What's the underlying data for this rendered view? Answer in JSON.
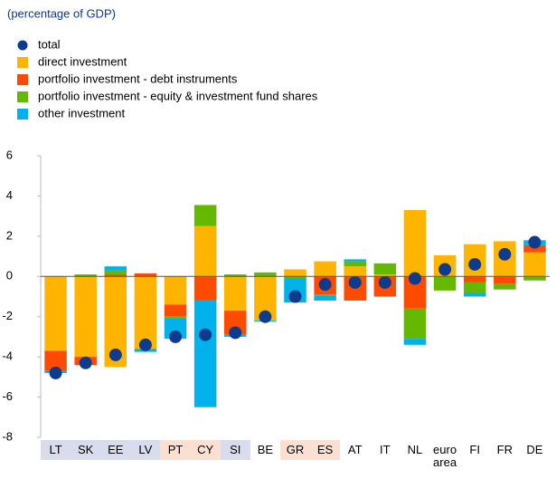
{
  "chart_data": {
    "type": "bar",
    "stacked": true,
    "subtitle": "(percentage of GDP)",
    "categories": [
      "LT",
      "SK",
      "EE",
      "LV",
      "PT",
      "CY",
      "SI",
      "BE",
      "GR",
      "ES",
      "AT",
      "IT",
      "NL",
      "euro area",
      "FI",
      "FR",
      "DE"
    ],
    "category_backgrounds": [
      "#d9dcec",
      "#d9dcec",
      "#d9dcec",
      "#d9dcec",
      "#fbdfd0",
      "#fbdfd0",
      "#d9dcec",
      null,
      "#fbdfd0",
      "#fbdfd0",
      null,
      null,
      null,
      null,
      null,
      null,
      null
    ],
    "series": [
      {
        "name": "total",
        "type": "scatter",
        "color": "#0d3b8e",
        "values": [
          -4.8,
          -4.3,
          -3.9,
          -3.4,
          -3.0,
          -2.9,
          -2.8,
          -2.0,
          -1.0,
          -0.4,
          -0.3,
          -0.3,
          -0.1,
          0.35,
          0.6,
          1.1,
          1.7
        ]
      },
      {
        "name": "direct investment",
        "color": "#ffb400",
        "values": [
          -3.7,
          -4.0,
          -4.5,
          -3.6,
          -1.4,
          2.5,
          -1.7,
          -2.2,
          0.35,
          0.75,
          0.5,
          0.1,
          3.3,
          1.05,
          1.6,
          1.75,
          1.2
        ]
      },
      {
        "name": "portfolio investment - debt instruments",
        "color": "#ff4b00",
        "values": [
          -1.0,
          -0.4,
          0.1,
          0.15,
          -0.6,
          -1.2,
          -1.2,
          0,
          0,
          -0.9,
          -1.2,
          -1.0,
          -1.6,
          0,
          -0.3,
          -0.35,
          0.35
        ]
      },
      {
        "name": "portfolio investment - equity & investment fund shares",
        "color": "#65b800",
        "values": [
          0,
          0.1,
          0.2,
          0,
          -0.1,
          1.05,
          0.1,
          0.2,
          -0.1,
          -0.05,
          0.25,
          0.55,
          -1.5,
          -0.7,
          -0.5,
          -0.3,
          -0.2
        ]
      },
      {
        "name": "other investment",
        "color": "#00b1ea",
        "values": [
          -0.1,
          0,
          0.2,
          -0.15,
          -1.0,
          -5.3,
          -0.1,
          -0.05,
          -1.2,
          -0.25,
          0.1,
          0,
          -0.3,
          0,
          -0.2,
          0,
          0.25
        ]
      }
    ],
    "ylim": [
      -8,
      6
    ],
    "yticks": [
      -8,
      -6,
      -4,
      -2,
      0,
      2,
      4,
      6
    ],
    "grid": false
  }
}
